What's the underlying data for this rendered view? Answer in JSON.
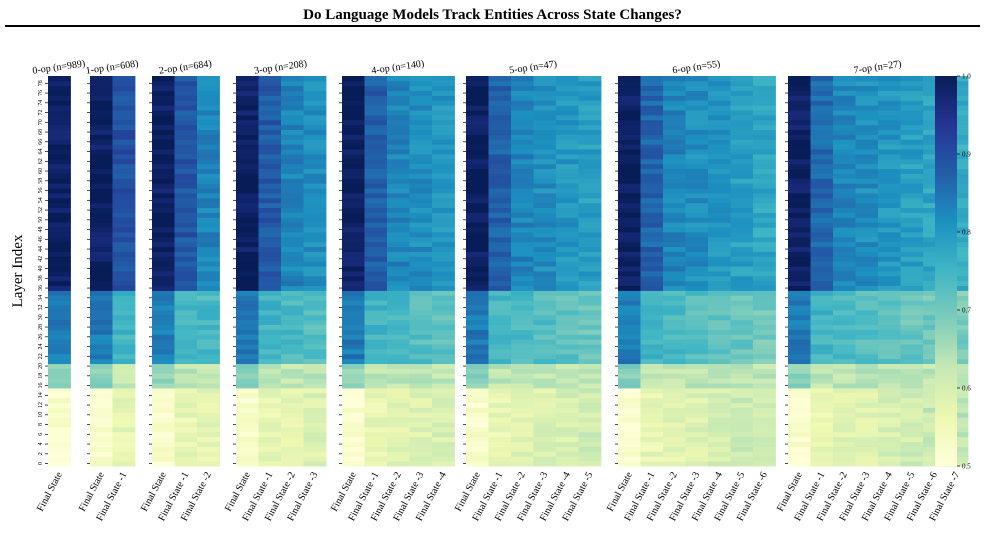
{
  "header": {
    "title": "Do Language Models Track Entities Across State Changes?"
  },
  "chart_data": {
    "type": "heatmap",
    "ylabel": "Layer Index",
    "layers": 80,
    "y_tick_labels": [
      "0",
      "2",
      "4",
      "6",
      "8",
      "10",
      "12",
      "14",
      "16",
      "18",
      "20",
      "22",
      "24",
      "26",
      "28",
      "30",
      "32",
      "34",
      "36",
      "38",
      "40",
      "42",
      "44",
      "46",
      "48",
      "50",
      "52",
      "54",
      "56",
      "58",
      "60",
      "62",
      "64",
      "66",
      "68",
      "70",
      "72",
      "74",
      "76",
      "78"
    ],
    "colorbar": {
      "ticks": [
        "0.5",
        "0.6",
        "0.7",
        "0.8",
        "0.9",
        "1.0"
      ],
      "min": 0.5,
      "max": 1.0,
      "colormap": "YlGnBu"
    },
    "panels": [
      {
        "title": "0-op (n=989)",
        "columns": [
          "Final State"
        ]
      },
      {
        "title": "1-op (n=608)",
        "columns": [
          "Final State",
          "Final State -1"
        ]
      },
      {
        "title": "2-op (n=684)",
        "columns": [
          "Final State",
          "Final State -1",
          "Final State -2"
        ]
      },
      {
        "title": "3-op (n=208)",
        "columns": [
          "Final State",
          "Final State -1",
          "Final State -2",
          "Final State -3"
        ]
      },
      {
        "title": "4-op (n=140)",
        "columns": [
          "Final State",
          "Final State -1",
          "Final State -2",
          "Final State -3",
          "Final State -4"
        ]
      },
      {
        "title": "5-op (n=47)",
        "columns": [
          "Final State",
          "Final State -1",
          "Final State -2",
          "Final State -3",
          "Final State -4",
          "Final State -5"
        ]
      },
      {
        "title": "6-op (n=55)",
        "columns": [
          "Final State",
          "Final State -1",
          "Final State -2",
          "Final State -3",
          "Final State -4",
          "Final State -5",
          "Final State -6"
        ]
      },
      {
        "title": "7-op (n=27)",
        "columns": [
          "Final State",
          "Final State -1",
          "Final State -2",
          "Final State -3",
          "Final State -4",
          "Final State -5",
          "Final State -6",
          "Final State -7"
        ]
      }
    ],
    "layer_profile_note_values": {
      "final_state": {
        "layer_0_15": 0.52,
        "layer_16_20": 0.68,
        "layer_21_35": 0.84,
        "layer_36_79": 0.99
      },
      "earlier_states": {
        "layer_0_15": 0.56,
        "layer_16_20": 0.63,
        "layer_21_35": 0.76,
        "layer_36_79": 0.85
      }
    }
  }
}
